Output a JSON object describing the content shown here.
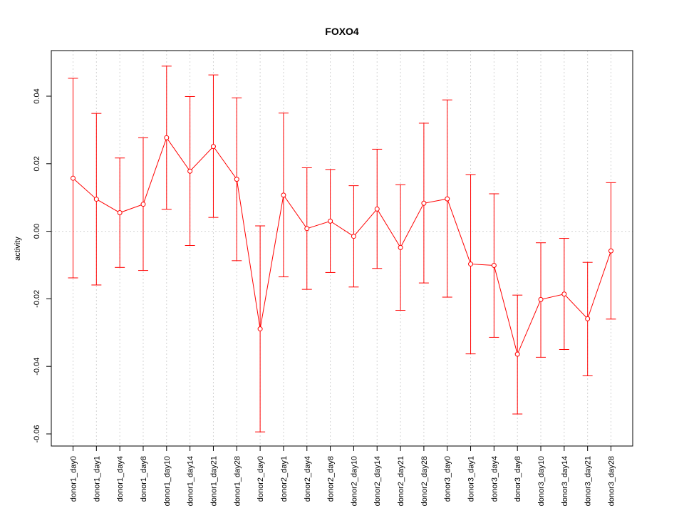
{
  "chart_data": {
    "type": "line",
    "title": "FOXO4",
    "xlabel": "",
    "ylabel": "activity",
    "ylim": [
      -0.064,
      0.054
    ],
    "yticks": [
      -0.06,
      -0.04,
      -0.02,
      0.0,
      0.02,
      0.04
    ],
    "ytick_labels": [
      "-0.06",
      "-0.04",
      "-0.02",
      "0.00",
      "0.02",
      "0.04"
    ],
    "grid": true,
    "color": "#ff0000",
    "categories": [
      "donor1_day0",
      "donor1_day1",
      "donor1_day4",
      "donor1_day8",
      "donor1_day10",
      "donor1_day14",
      "donor1_day21",
      "donor1_day28",
      "donor2_day0",
      "donor2_day1",
      "donor2_day4",
      "donor2_day8",
      "donor2_day10",
      "donor2_day14",
      "donor2_day21",
      "donor2_day28",
      "donor3_day0",
      "donor3_day1",
      "donor3_day4",
      "donor3_day8",
      "donor3_day10",
      "donor3_day14",
      "donor3_day21",
      "donor3_day28"
    ],
    "values": [
      0.0157,
      0.0095,
      0.0055,
      0.008,
      0.0277,
      0.0178,
      0.0251,
      0.0154,
      -0.0289,
      0.0107,
      0.0008,
      0.003,
      -0.0015,
      0.0066,
      -0.0048,
      0.0083,
      0.0096,
      -0.0097,
      -0.0101,
      -0.0364,
      -0.0202,
      -0.0186,
      -0.0259,
      -0.0058
    ],
    "upper": [
      0.0453,
      0.0349,
      0.0217,
      0.0277,
      0.0489,
      0.0399,
      0.0463,
      0.0395,
      0.0016,
      0.035,
      0.0188,
      0.0183,
      0.0135,
      0.0243,
      0.0138,
      0.032,
      0.0389,
      0.0168,
      0.0111,
      -0.0189,
      -0.0034,
      -0.0021,
      -0.0092,
      0.0144
    ],
    "lower": [
      -0.0138,
      -0.0159,
      -0.0107,
      -0.0116,
      0.0065,
      -0.0042,
      0.0041,
      -0.0087,
      -0.0594,
      -0.0135,
      -0.0172,
      -0.0122,
      -0.0165,
      -0.011,
      -0.0234,
      -0.0153,
      -0.0195,
      -0.0363,
      -0.0314,
      -0.0541,
      -0.0373,
      -0.035,
      -0.0428,
      -0.026
    ]
  }
}
